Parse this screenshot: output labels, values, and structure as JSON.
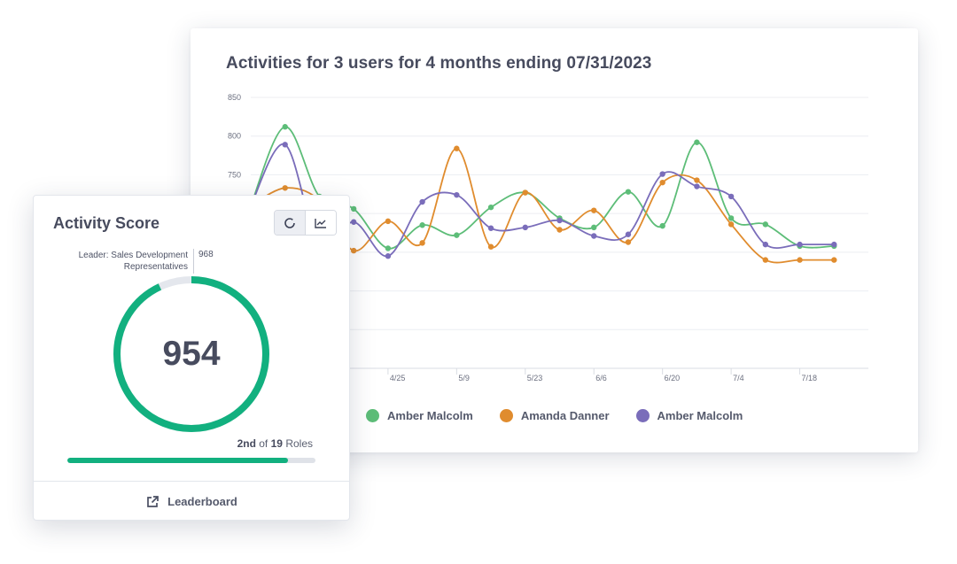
{
  "chart_card": {
    "title": "Activities for 3 users for 4 months ending 07/31/2023"
  },
  "chart_data": {
    "type": "line",
    "title": "Activities for 3 users for 4 months ending 07/31/2023",
    "ylim": [
      500,
      850
    ],
    "yticks": [
      850,
      800,
      750
    ],
    "xlim": [
      0,
      18
    ],
    "xticks": [
      {
        "x": 4,
        "label": "4/25"
      },
      {
        "x": 6,
        "label": "5/9"
      },
      {
        "x": 8,
        "label": "5/23"
      },
      {
        "x": 10,
        "label": "6/6"
      },
      {
        "x": 12,
        "label": "6/20"
      },
      {
        "x": 14,
        "label": "7/4"
      },
      {
        "x": 16,
        "label": "7/18"
      }
    ],
    "grid": true,
    "legend_position": "bottom",
    "series": [
      {
        "name": "Amber Malcolm",
        "color": "#5dbd78",
        "points": [
          [
            0,
            710
          ],
          [
            1,
            812
          ],
          [
            2,
            722
          ],
          [
            3,
            706
          ],
          [
            4,
            655
          ],
          [
            5,
            685
          ],
          [
            6,
            672
          ],
          [
            7,
            708
          ],
          [
            8,
            727
          ],
          [
            9,
            694
          ],
          [
            10,
            682
          ],
          [
            11,
            728
          ],
          [
            12,
            684
          ],
          [
            13,
            792
          ],
          [
            14,
            694
          ],
          [
            15,
            686
          ],
          [
            16,
            658
          ],
          [
            17,
            658
          ]
        ]
      },
      {
        "name": "Amanda Danner",
        "color": "#e08c2e",
        "points": [
          [
            0,
            710
          ],
          [
            1,
            733
          ],
          [
            2,
            717
          ],
          [
            3,
            652
          ],
          [
            4,
            690
          ],
          [
            5,
            662
          ],
          [
            6,
            784
          ],
          [
            7,
            657
          ],
          [
            8,
            727
          ],
          [
            9,
            679
          ],
          [
            10,
            704
          ],
          [
            11,
            663
          ],
          [
            12,
            740
          ],
          [
            13,
            743
          ],
          [
            14,
            686
          ],
          [
            15,
            640
          ],
          [
            16,
            640
          ],
          [
            17,
            640
          ]
        ]
      },
      {
        "name": "Amber Malcolm",
        "color": "#7a6dba",
        "points": [
          [
            0,
            710
          ],
          [
            1,
            789
          ],
          [
            2,
            658
          ],
          [
            3,
            689
          ],
          [
            4,
            645
          ],
          [
            5,
            715
          ],
          [
            6,
            724
          ],
          [
            7,
            681
          ],
          [
            8,
            682
          ],
          [
            9,
            691
          ],
          [
            10,
            671
          ],
          [
            11,
            673
          ],
          [
            12,
            751
          ],
          [
            13,
            735
          ],
          [
            14,
            722
          ],
          [
            15,
            660
          ],
          [
            16,
            660
          ],
          [
            17,
            660
          ]
        ]
      }
    ]
  },
  "score_card": {
    "title": "Activity Score",
    "leader_label": "Leader: Sales Development Representatives",
    "leader_value": "968",
    "score": "954",
    "ring_fraction": 0.93,
    "rank_position": "2nd",
    "rank_of": "of",
    "rank_total": "19",
    "rank_unit": "Roles",
    "rank_progress": 0.89,
    "footer_label": "Leaderboard",
    "accent_color": "#12b07f"
  },
  "icons": {
    "toggle_ring": "circle-outline-icon",
    "toggle_chart": "line-chart-icon",
    "footer": "external-link-icon"
  }
}
